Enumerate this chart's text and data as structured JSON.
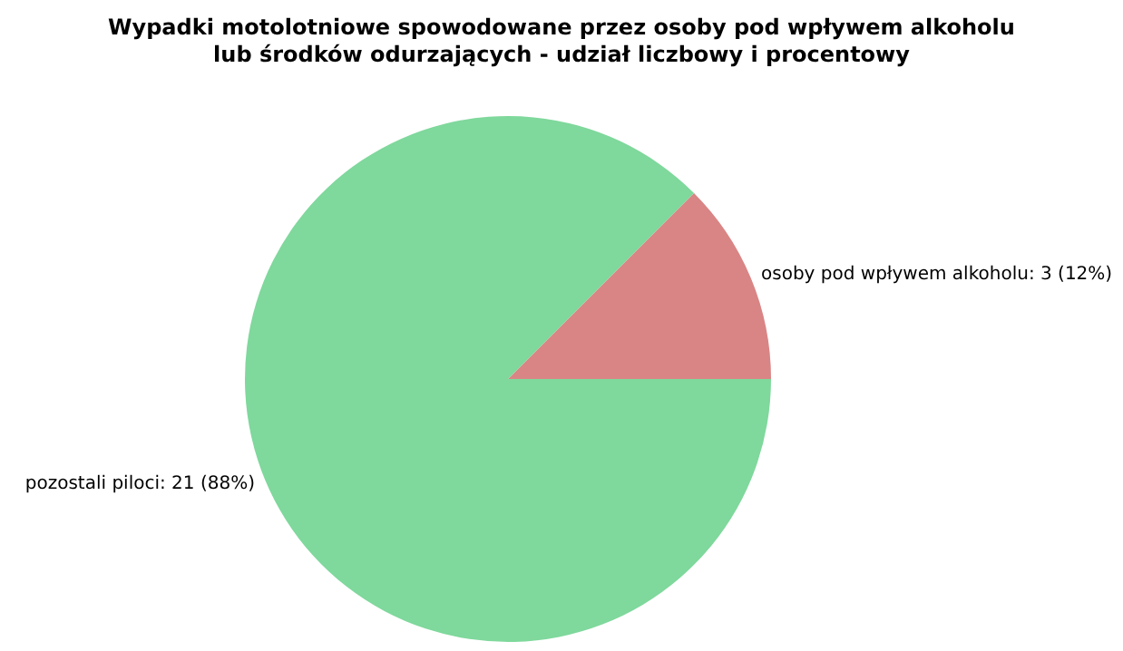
{
  "chart_data": {
    "type": "pie",
    "title": "Wypadki motolotniowe spowodowane przez osoby pod wpływem alkoholu\nlub środków odurzających - udział liczbowy i procentowy",
    "categories": [
      "osoby pod wpływem alkoholu: 3 (12%)",
      "pozostali piloci: 21 (88%)"
    ],
    "values": [
      3,
      21
    ],
    "colors": [
      "#d98585",
      "#7fd89c"
    ],
    "legend": false
  }
}
